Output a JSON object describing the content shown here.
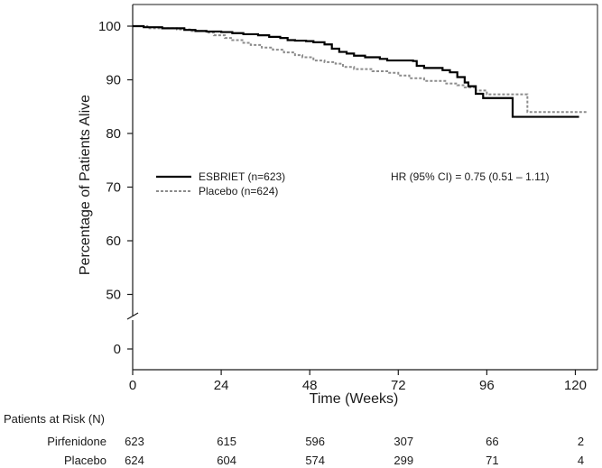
{
  "chart_data": {
    "type": "line",
    "xlabel": "Time (Weeks)",
    "ylabel": "Percentage of Patients Alive",
    "xlim": [
      0,
      126
    ],
    "x_ticks": [
      0,
      24,
      48,
      72,
      96,
      120
    ],
    "y_ticks": [
      0,
      50,
      60,
      70,
      80,
      90,
      100
    ],
    "y_axis_break": "between 0 and 50",
    "grid": false,
    "legend_position": "left",
    "annotation": "HR (95% CI) = 0.75 (0.51 – 1.11)",
    "series": [
      {
        "name": "ESBRIET (n=623)",
        "style": "solid",
        "color": "#000000",
        "points": [
          [
            0,
            100
          ],
          [
            2,
            100
          ],
          [
            3,
            99.8
          ],
          [
            8,
            99.6
          ],
          [
            14,
            99.3
          ],
          [
            17,
            99.1
          ],
          [
            20,
            99.0
          ],
          [
            24,
            98.9
          ],
          [
            27,
            98.7
          ],
          [
            30,
            98.5
          ],
          [
            34,
            98.3
          ],
          [
            37,
            98.0
          ],
          [
            40,
            97.8
          ],
          [
            42,
            97.4
          ],
          [
            44,
            97.3
          ],
          [
            47,
            97.2
          ],
          [
            49,
            97.0
          ],
          [
            52,
            96.6
          ],
          [
            54,
            95.8
          ],
          [
            56,
            95.2
          ],
          [
            58,
            94.9
          ],
          [
            60,
            94.5
          ],
          [
            63,
            94.2
          ],
          [
            67,
            93.9
          ],
          [
            69,
            93.6
          ],
          [
            76,
            93.5
          ],
          [
            77,
            92.6
          ],
          [
            79,
            92.2
          ],
          [
            84,
            91.8
          ],
          [
            86,
            91.4
          ],
          [
            88,
            90.5
          ],
          [
            90,
            89.5
          ],
          [
            91,
            88.8
          ],
          [
            93,
            87.4
          ],
          [
            95,
            86.6
          ],
          [
            103,
            86.6
          ],
          [
            103,
            83.1
          ],
          [
            121,
            83.1
          ]
        ]
      },
      {
        "name": "Placebo (n=624)",
        "style": "dashed",
        "color": "#8c8c8c",
        "points": [
          [
            0,
            100
          ],
          [
            3,
            100
          ],
          [
            4,
            99.6
          ],
          [
            12,
            99.4
          ],
          [
            16,
            99.1
          ],
          [
            20,
            98.8
          ],
          [
            22,
            98.3
          ],
          [
            25,
            97.8
          ],
          [
            27,
            97.4
          ],
          [
            30,
            96.9
          ],
          [
            32,
            96.5
          ],
          [
            35,
            96.0
          ],
          [
            38,
            95.6
          ],
          [
            41,
            95.1
          ],
          [
            44,
            94.6
          ],
          [
            46,
            94.2
          ],
          [
            49,
            93.6
          ],
          [
            52,
            93.3
          ],
          [
            55,
            93.0
          ],
          [
            57,
            92.4
          ],
          [
            60,
            92.0
          ],
          [
            65,
            91.6
          ],
          [
            69,
            91.3
          ],
          [
            72,
            90.8
          ],
          [
            75,
            90.3
          ],
          [
            79,
            89.8
          ],
          [
            85,
            89.3
          ],
          [
            88,
            89.0
          ],
          [
            90,
            88.6
          ],
          [
            93,
            88.0
          ],
          [
            96,
            87.3
          ],
          [
            106,
            87.3
          ],
          [
            107,
            84.0
          ],
          [
            123,
            84.0
          ]
        ]
      }
    ],
    "at_risk": {
      "title": "Patients at Risk (N)",
      "times": [
        0,
        24,
        48,
        72,
        96,
        120
      ],
      "rows": [
        {
          "label": "Pirfenidone",
          "values": [
            623,
            615,
            596,
            307,
            66,
            2
          ]
        },
        {
          "label": "Placebo",
          "values": [
            624,
            604,
            574,
            299,
            71,
            4
          ]
        }
      ]
    }
  }
}
